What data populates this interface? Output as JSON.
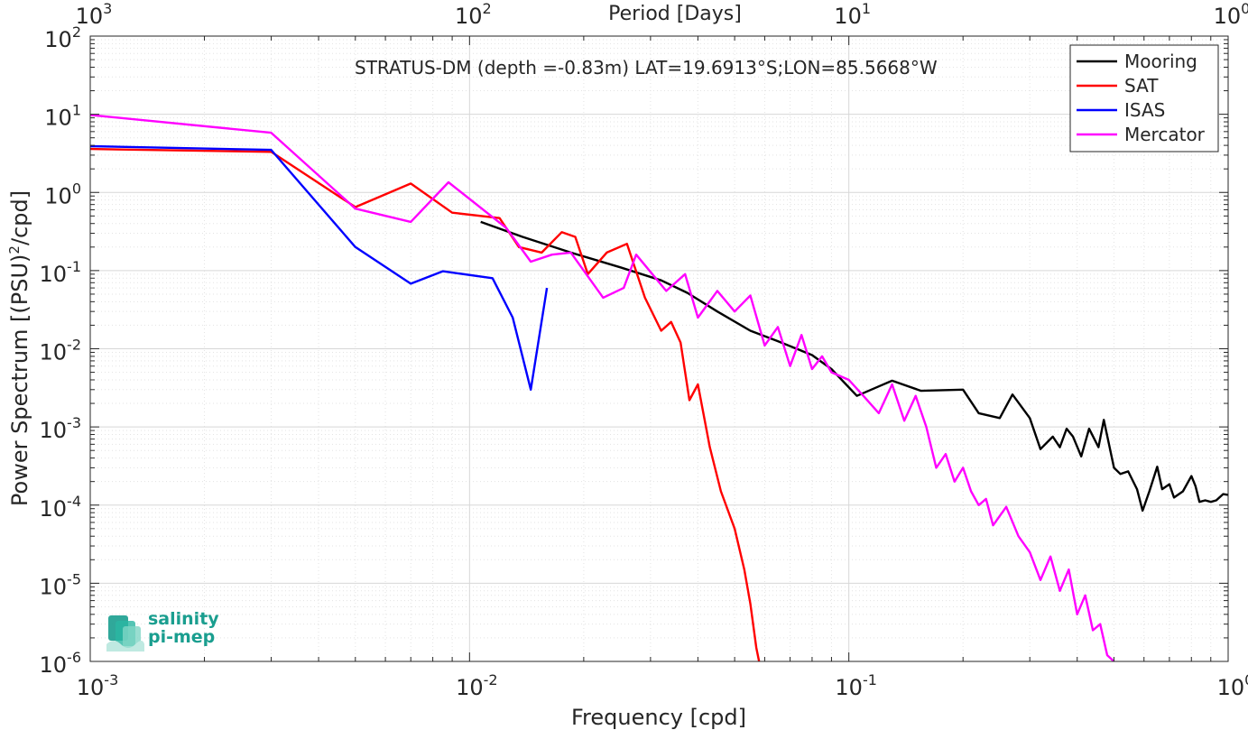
{
  "chart_data": {
    "type": "line",
    "title": "STRATUS-DM (depth =-0.83m) LAT=19.6913°S;LON=85.5668°W",
    "xlabel": "Frequency [cpd]",
    "ylabel": "Power Spectrum [(PSU)²/cpd]",
    "ylabel_parts": {
      "before": "Power Spectrum [(PSU)",
      "sup": "2",
      "after": "/cpd]"
    },
    "top_xlabel": "Period [Days]",
    "x_scale": "log",
    "y_scale": "log",
    "xlim": [
      0.001,
      1
    ],
    "ylim": [
      1e-06,
      100
    ],
    "grid": true,
    "minor_grid": true,
    "legend_position": "top-right",
    "x_ticks": [
      {
        "value": 0.001,
        "base": "10",
        "exp": "-3"
      },
      {
        "value": 0.01,
        "base": "10",
        "exp": "-2"
      },
      {
        "value": 0.1,
        "base": "10",
        "exp": "-1"
      },
      {
        "value": 1,
        "base": "10",
        "exp": "0"
      }
    ],
    "top_ticks": [
      {
        "value": 0.001,
        "base": "10",
        "exp": "3"
      },
      {
        "value": 0.01,
        "base": "10",
        "exp": "2"
      },
      {
        "value": 0.1,
        "base": "10",
        "exp": "1"
      },
      {
        "value": 1,
        "base": "10",
        "exp": "0"
      }
    ],
    "y_ticks": [
      {
        "value": 1e-06,
        "base": "10",
        "exp": "-6"
      },
      {
        "value": 1e-05,
        "base": "10",
        "exp": "-5"
      },
      {
        "value": 0.0001,
        "base": "10",
        "exp": "-4"
      },
      {
        "value": 0.001,
        "base": "10",
        "exp": "-3"
      },
      {
        "value": 0.01,
        "base": "10",
        "exp": "-2"
      },
      {
        "value": 0.1,
        "base": "10",
        "exp": "-1"
      },
      {
        "value": 1,
        "base": "10",
        "exp": "0"
      },
      {
        "value": 10,
        "base": "10",
        "exp": "1"
      },
      {
        "value": 100,
        "base": "10",
        "exp": "2"
      }
    ],
    "series": [
      {
        "name": "Mooring",
        "color": "#000000",
        "points": [
          [
            0.0107,
            0.42
          ],
          [
            0.0138,
            0.27
          ],
          [
            0.0185,
            0.17
          ],
          [
            0.025,
            0.11
          ],
          [
            0.032,
            0.075
          ],
          [
            0.0375,
            0.052
          ],
          [
            0.045,
            0.03
          ],
          [
            0.055,
            0.017
          ],
          [
            0.065,
            0.0125
          ],
          [
            0.08,
            0.0083
          ],
          [
            0.09,
            0.0055
          ],
          [
            0.105,
            0.0025
          ],
          [
            0.12,
            0.0033
          ],
          [
            0.13,
            0.0039
          ],
          [
            0.155,
            0.0029
          ],
          [
            0.2,
            0.003
          ],
          [
            0.22,
            0.0015
          ],
          [
            0.25,
            0.0013
          ],
          [
            0.27,
            0.0026
          ],
          [
            0.3,
            0.0013
          ],
          [
            0.32,
            0.00052
          ],
          [
            0.345,
            0.00075
          ],
          [
            0.36,
            0.00055
          ],
          [
            0.375,
            0.00095
          ],
          [
            0.39,
            0.00075
          ],
          [
            0.41,
            0.00042
          ],
          [
            0.43,
            0.00095
          ],
          [
            0.455,
            0.00055
          ],
          [
            0.47,
            0.00123
          ],
          [
            0.5,
            0.0003
          ],
          [
            0.52,
            0.00025
          ],
          [
            0.545,
            0.00027
          ],
          [
            0.575,
            0.00016
          ],
          [
            0.595,
            8.5e-05
          ],
          [
            0.62,
            0.00015
          ],
          [
            0.65,
            0.00031
          ],
          [
            0.67,
            0.00016
          ],
          [
            0.7,
            0.000185
          ],
          [
            0.72,
            0.000125
          ],
          [
            0.76,
            0.00015
          ],
          [
            0.8,
            0.000235
          ],
          [
            0.82,
            0.000175
          ],
          [
            0.84,
            0.00011
          ],
          [
            0.87,
            0.000115
          ],
          [
            0.9,
            0.00011
          ],
          [
            0.93,
            0.000115
          ],
          [
            0.97,
            0.000138
          ],
          [
            1.0,
            0.000135
          ]
        ]
      },
      {
        "name": "SAT",
        "color": "#ff0000",
        "points": [
          [
            0.001,
            3.6
          ],
          [
            0.003,
            3.3
          ],
          [
            0.005,
            0.65
          ],
          [
            0.007,
            1.3
          ],
          [
            0.009,
            0.55
          ],
          [
            0.012,
            0.47
          ],
          [
            0.0135,
            0.2
          ],
          [
            0.0155,
            0.17
          ],
          [
            0.0175,
            0.31
          ],
          [
            0.019,
            0.27
          ],
          [
            0.0205,
            0.09
          ],
          [
            0.023,
            0.17
          ],
          [
            0.026,
            0.22
          ],
          [
            0.029,
            0.045
          ],
          [
            0.032,
            0.017
          ],
          [
            0.034,
            0.022
          ],
          [
            0.036,
            0.012
          ],
          [
            0.038,
            0.0022
          ],
          [
            0.04,
            0.0035
          ],
          [
            0.043,
            0.00055
          ],
          [
            0.046,
            0.00015
          ],
          [
            0.05,
            5e-05
          ],
          [
            0.053,
            1.5e-05
          ],
          [
            0.055,
            5.5e-06
          ],
          [
            0.057,
            1.5e-06
          ],
          [
            0.058,
            1e-06
          ]
        ]
      },
      {
        "name": "ISAS",
        "color": "#0000ff",
        "points": [
          [
            0.001,
            3.9
          ],
          [
            0.003,
            3.5
          ],
          [
            0.005,
            0.2
          ],
          [
            0.007,
            0.068
          ],
          [
            0.0085,
            0.098
          ],
          [
            0.0115,
            0.08
          ],
          [
            0.013,
            0.025
          ],
          [
            0.0145,
            0.003
          ],
          [
            0.016,
            0.06
          ]
        ]
      },
      {
        "name": "Mercator",
        "color": "#ff00ff",
        "points": [
          [
            0.001,
            9.8
          ],
          [
            0.003,
            5.8
          ],
          [
            0.005,
            0.62
          ],
          [
            0.007,
            0.42
          ],
          [
            0.0088,
            1.35
          ],
          [
            0.0125,
            0.35
          ],
          [
            0.0145,
            0.13
          ],
          [
            0.0165,
            0.16
          ],
          [
            0.0185,
            0.17
          ],
          [
            0.0225,
            0.045
          ],
          [
            0.0255,
            0.06
          ],
          [
            0.0275,
            0.16
          ],
          [
            0.033,
            0.055
          ],
          [
            0.037,
            0.09
          ],
          [
            0.04,
            0.025
          ],
          [
            0.045,
            0.055
          ],
          [
            0.05,
            0.03
          ],
          [
            0.055,
            0.048
          ],
          [
            0.06,
            0.011
          ],
          [
            0.065,
            0.019
          ],
          [
            0.07,
            0.006
          ],
          [
            0.075,
            0.015
          ],
          [
            0.08,
            0.0055
          ],
          [
            0.085,
            0.008
          ],
          [
            0.09,
            0.005
          ],
          [
            0.1,
            0.004
          ],
          [
            0.11,
            0.0024
          ],
          [
            0.12,
            0.0015
          ],
          [
            0.13,
            0.0035
          ],
          [
            0.14,
            0.0012
          ],
          [
            0.15,
            0.0025
          ],
          [
            0.16,
            0.001
          ],
          [
            0.17,
            0.0003
          ],
          [
            0.18,
            0.00045
          ],
          [
            0.19,
            0.0002
          ],
          [
            0.2,
            0.0003
          ],
          [
            0.21,
            0.00015
          ],
          [
            0.22,
            0.0001
          ],
          [
            0.23,
            0.00012
          ],
          [
            0.24,
            5.5e-05
          ],
          [
            0.26,
            9.5e-05
          ],
          [
            0.28,
            4e-05
          ],
          [
            0.3,
            2.5e-05
          ],
          [
            0.32,
            1.1e-05
          ],
          [
            0.34,
            2.2e-05
          ],
          [
            0.36,
            8e-06
          ],
          [
            0.38,
            1.5e-05
          ],
          [
            0.4,
            4e-06
          ],
          [
            0.42,
            7e-06
          ],
          [
            0.44,
            2.5e-06
          ],
          [
            0.46,
            3e-06
          ],
          [
            0.48,
            1.2e-06
          ],
          [
            0.5,
            1e-06
          ]
        ]
      }
    ]
  },
  "logo": {
    "line1": "salinity",
    "line2": "pi-mep",
    "color": "#1a9e8f"
  }
}
